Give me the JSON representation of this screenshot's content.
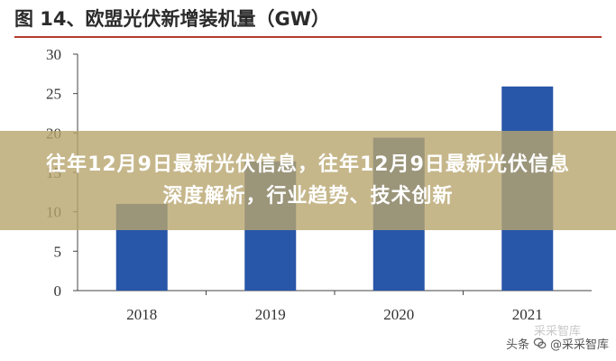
{
  "figure": {
    "title": "图 14、欧盟光伏新增装机量（GW）"
  },
  "banner": {
    "headline": "往年12月9日最新光伏信息，往年12月9日最新光伏信息深度解析，行业趋势、技术创新"
  },
  "watermark": {
    "source": "头条",
    "author": "@采采智库",
    "faded_text": "采采智库"
  },
  "colors": {
    "bar": "#2856a8",
    "title_rule": "#b23b2e",
    "banner_overlay": "#b8a56e"
  },
  "chart_data": {
    "type": "bar",
    "title": "图 14、欧盟光伏新增装机量（GW）",
    "xlabel": "",
    "ylabel": "",
    "categories": [
      "2018",
      "2019",
      "2020",
      "2021"
    ],
    "values": [
      11.0,
      16.4,
      19.4,
      25.9
    ],
    "ylim": [
      0,
      30
    ],
    "yticks": [
      0,
      5,
      10,
      15,
      20,
      25,
      30
    ],
    "grid": false,
    "legend": "none"
  }
}
